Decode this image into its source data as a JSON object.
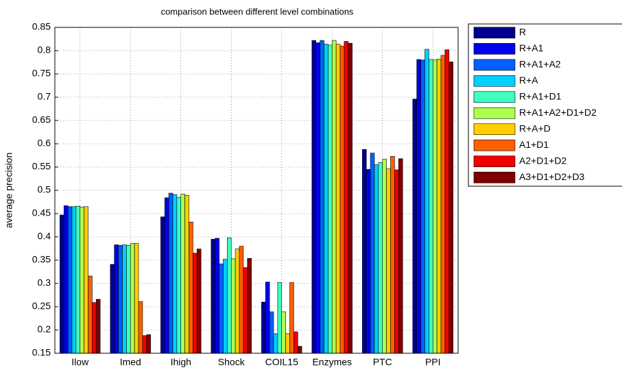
{
  "chart_data": {
    "type": "bar",
    "title": "comparison between different level combinations",
    "y_label": "average precision",
    "categories": [
      "Ilow",
      "Imed",
      "Ihigh",
      "Shock",
      "COIL15",
      "Enzymes",
      "PTC",
      "PPI"
    ],
    "series": [
      {
        "name": "R",
        "color": "#00008f",
        "values": [
          0.447,
          0.341,
          0.443,
          0.395,
          0.26,
          0.822,
          0.588,
          0.696
        ]
      },
      {
        "name": "R+A1",
        "color": "#0000ef",
        "values": [
          0.467,
          0.383,
          0.484,
          0.397,
          0.303,
          0.817,
          0.545,
          0.781
        ]
      },
      {
        "name": "R+A1+A2",
        "color": "#0060ff",
        "values": [
          0.465,
          0.382,
          0.494,
          0.342,
          0.239,
          0.822,
          0.58,
          0.78
        ]
      },
      {
        "name": "R+A",
        "color": "#00cfff",
        "values": [
          0.465,
          0.383,
          0.491,
          0.352,
          0.192,
          0.814,
          0.555,
          0.803
        ]
      },
      {
        "name": "R+A1+D1",
        "color": "#40ffbf",
        "values": [
          0.466,
          0.382,
          0.485,
          0.398,
          0.302,
          0.812,
          0.56,
          0.781
        ]
      },
      {
        "name": "R+A1+A2+D1+D2",
        "color": "#afff50",
        "values": [
          0.464,
          0.386,
          0.492,
          0.353,
          0.239,
          0.822,
          0.567,
          0.78
        ]
      },
      {
        "name": "R+A+D",
        "color": "#ffcf00",
        "values": [
          0.465,
          0.386,
          0.489,
          0.374,
          0.192,
          0.814,
          0.546,
          0.782
        ]
      },
      {
        "name": "A1+D1",
        "color": "#ff6000",
        "values": [
          0.316,
          0.261,
          0.432,
          0.38,
          0.302,
          0.81,
          0.573,
          0.79
        ]
      },
      {
        "name": "A2+D1+D2",
        "color": "#ef0000",
        "values": [
          0.259,
          0.188,
          0.365,
          0.334,
          0.196,
          0.82,
          0.544,
          0.802
        ]
      },
      {
        "name": "A3+D1+D2+D3",
        "color": "#800000",
        "values": [
          0.266,
          0.19,
          0.374,
          0.354,
          0.165,
          0.816,
          0.568,
          0.776
        ]
      }
    ],
    "ylim": [
      0.15,
      0.85
    ],
    "yticks": [
      0.15,
      0.2,
      0.25,
      0.3,
      0.35,
      0.4,
      0.45,
      0.5,
      0.55,
      0.6,
      0.65,
      0.7,
      0.75,
      0.8,
      0.85
    ],
    "grid": true
  }
}
